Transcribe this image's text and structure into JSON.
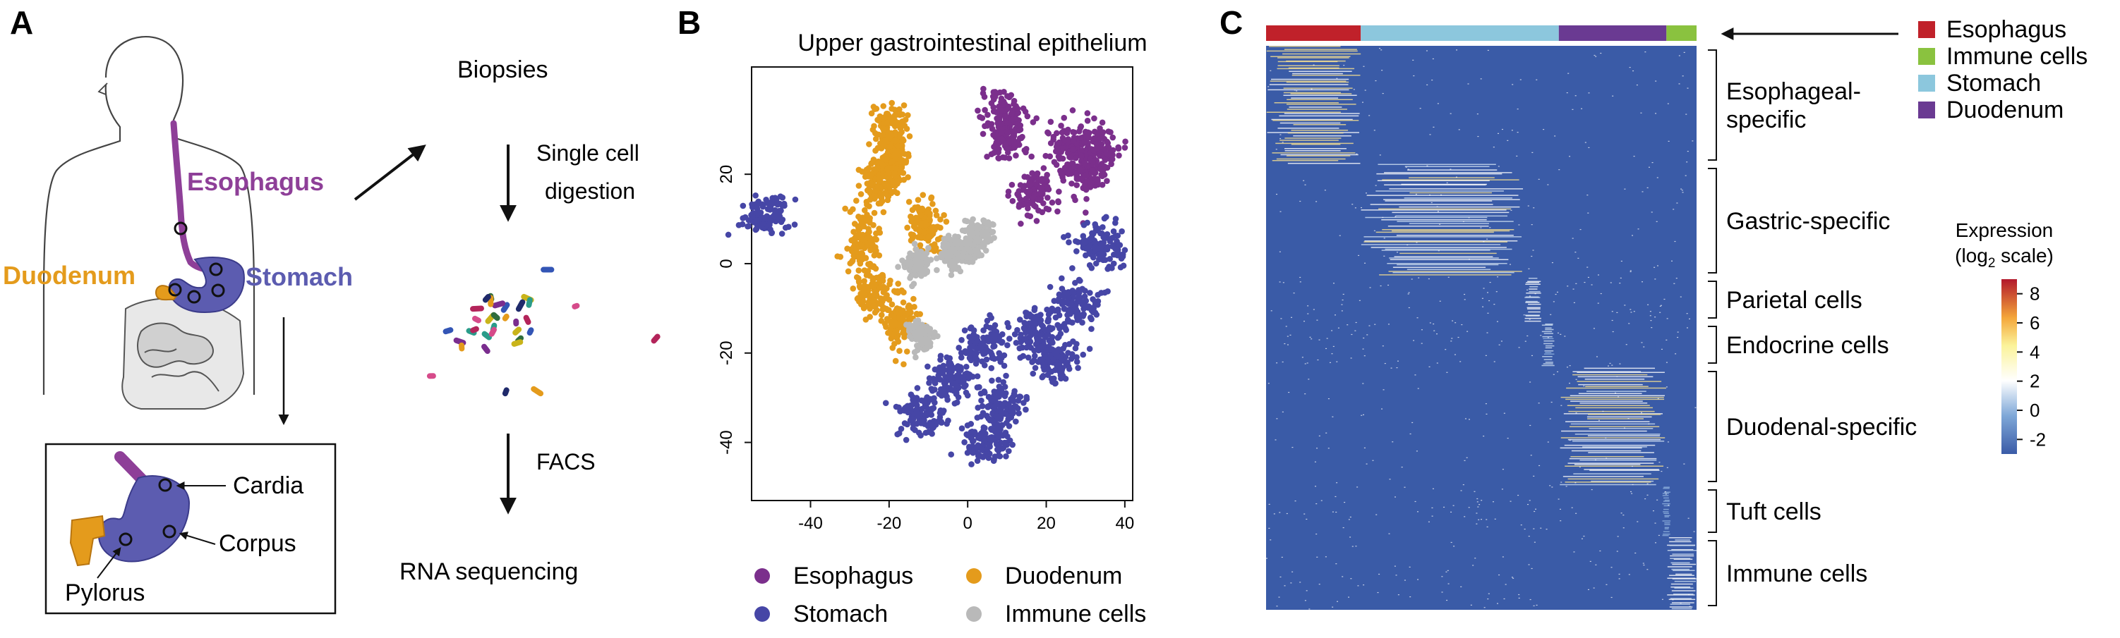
{
  "panel_a": {
    "letter": "A",
    "labels": {
      "esophagus": "Esophagus",
      "duodenum": "Duodenum",
      "stomach": "Stomach",
      "cardia": "Cardia",
      "corpus": "Corpus",
      "pylorus": "Pylorus"
    },
    "workflow": {
      "biopsies": "Biopsies",
      "digestion_line1": "Single cell",
      "digestion_line2": "digestion",
      "facs": "FACS",
      "sequencing": "RNA sequencing"
    },
    "colors": {
      "esophagus": "#8e3f98",
      "duodenum": "#e49b1c",
      "stomach": "#5c5cb0",
      "cell_palette": [
        "#b3245a",
        "#3355b5",
        "#e49b1c",
        "#2a9c8a",
        "#7a2d8e",
        "#d64b8a",
        "#c9b41a",
        "#2f6d3c",
        "#1f2a6b"
      ]
    }
  },
  "panel_b": {
    "letter": "B",
    "chart_data": {
      "type": "scatter",
      "title": "Upper gastrointestinal epithelium",
      "xlabel": "",
      "ylabel": "",
      "xlim": [
        -55,
        42
      ],
      "ylim": [
        -53,
        44
      ],
      "xticks": [
        -40,
        -20,
        0,
        20,
        40
      ],
      "yticks": [
        20,
        0,
        -20,
        -40
      ],
      "legend_position": "bottom",
      "series": [
        {
          "name": "Esophagus",
          "color": "#7b2f8c",
          "centers": [
            [
              10,
              28
            ],
            [
              26,
              26
            ],
            [
              9,
              33
            ],
            [
              30,
              20
            ],
            [
              17,
              16
            ],
            [
              33,
              26
            ]
          ],
          "spread": [
            4.5,
            4.5
          ]
        },
        {
          "name": "Duodenum",
          "color": "#e49b1c",
          "centers": [
            [
              -20,
              30
            ],
            [
              -23,
              18
            ],
            [
              -27,
              5
            ],
            [
              -24,
              -6
            ],
            [
              -17,
              -13
            ],
            [
              -11,
              9
            ],
            [
              -19,
              22
            ]
          ],
          "spread": [
            3.5,
            5
          ]
        },
        {
          "name": "Stomach",
          "color": "#4646a6",
          "centers": [
            [
              5,
              -18
            ],
            [
              18,
              -15
            ],
            [
              28,
              -9
            ],
            [
              34,
              4
            ],
            [
              -4,
              -26
            ],
            [
              8,
              -32
            ],
            [
              4,
              -40
            ],
            [
              -12,
              -34
            ],
            [
              22,
              -22
            ],
            [
              -52,
              11
            ]
          ],
          "spread": [
            5,
            4
          ]
        },
        {
          "name": "Immune cells",
          "color": "#b9b9b9",
          "centers": [
            [
              0,
              3
            ],
            [
              -4,
              2
            ],
            [
              3,
              7
            ],
            [
              -13,
              0
            ],
            [
              -12,
              -16
            ]
          ],
          "spread": [
            2.5,
            2.5
          ]
        }
      ],
      "legend": [
        {
          "label": "Esophagus",
          "color": "#7b2f8c"
        },
        {
          "label": "Duodenum",
          "color": "#e49b1c"
        },
        {
          "label": "Stomach",
          "color": "#4646a6"
        },
        {
          "label": "Immune cells",
          "color": "#b9b9b9"
        }
      ]
    }
  },
  "panel_c": {
    "letter": "C",
    "chart_data": {
      "type": "heatmap",
      "column_groups": [
        {
          "name": "Esophagus",
          "fraction": 0.22,
          "color": "#c0212a"
        },
        {
          "name": "Stomach",
          "fraction": 0.46,
          "color": "#8cc7dd"
        },
        {
          "name": "Duodenum",
          "fraction": 0.25,
          "color": "#6a3a92"
        },
        {
          "name": "Immune cells",
          "fraction": 0.07,
          "color": "#8ac23f"
        }
      ],
      "row_groups": [
        {
          "label": "Esophageal-specific",
          "lines": [
            "Esophageal-",
            "specific"
          ],
          "fraction": 0.21,
          "column_group": "Esophagus",
          "columns": [
            0.0,
            0.22
          ],
          "level": 6
        },
        {
          "label": "Gastric-specific",
          "lines": [
            "Gastric-specific"
          ],
          "fraction": 0.2,
          "column_group": "Stomach",
          "columns": [
            0.22,
            0.6
          ],
          "level": 4
        },
        {
          "label": "Parietal cells",
          "lines": [
            "Parietal cells"
          ],
          "fraction": 0.08,
          "column_group": "Stomach",
          "columns": [
            0.6,
            0.64
          ],
          "level": 3
        },
        {
          "label": "Endocrine cells",
          "lines": [
            "Endocrine cells"
          ],
          "fraction": 0.08,
          "column_group": "Stomach",
          "columns": [
            0.64,
            0.67
          ],
          "level": 2
        },
        {
          "label": "Duodenal-specific",
          "lines": [
            "Duodenal-specific"
          ],
          "fraction": 0.21,
          "column_group": "Duodenum",
          "columns": [
            0.68,
            0.93
          ],
          "level": 4
        },
        {
          "label": "Tuft cells",
          "lines": [
            "Tuft cells"
          ],
          "fraction": 0.09,
          "column_group": "Duodenum",
          "columns": [
            0.92,
            0.94
          ],
          "level": 1
        },
        {
          "label": "Immune cells",
          "lines": [
            "Immune cells"
          ],
          "fraction": 0.13,
          "column_group": "Immune cells",
          "columns": [
            0.93,
            1.0
          ],
          "level": 3
        }
      ],
      "colorbar": {
        "title_line1": "Expression",
        "title_line2": "(log",
        "title_sub": "2",
        "title_line2_end": " scale)",
        "min": -3,
        "max": 9,
        "ticks": [
          8,
          6,
          4,
          2,
          0,
          -2
        ],
        "colors": [
          "#b2182b",
          "#f4a63a",
          "#fbf39a",
          "#ffffff",
          "#7fa8d8",
          "#3a5ba7"
        ]
      },
      "legend": [
        {
          "label": "Esophagus",
          "color": "#c0212a"
        },
        {
          "label": "Immune cells",
          "color": "#8ac23f"
        },
        {
          "label": "Stomach",
          "color": "#8cc7dd"
        },
        {
          "label": "Duodenum",
          "color": "#6a3a92"
        }
      ]
    }
  }
}
